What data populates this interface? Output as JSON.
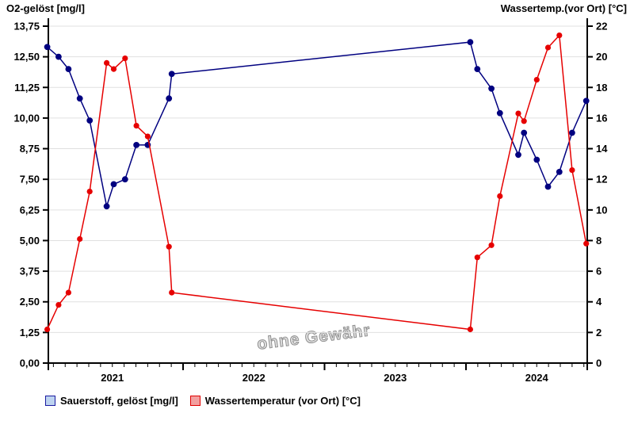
{
  "titles": {
    "left": "O2-gelöst [mg/l]",
    "right": "Wassertemp.(vor Ort) [°C]"
  },
  "watermark": "ohne Gewähr",
  "legend": [
    {
      "label": "Sauerstoff, gelöst [mg/l]",
      "fill": "#bdd3f0",
      "border": "#1a1aa0"
    },
    {
      "label": "Wassertemperatur (vor Ort) [°C]",
      "fill": "#f2a0a0",
      "border": "#e00000"
    }
  ],
  "chart_data": {
    "type": "line",
    "title": "",
    "grid": "horizontal",
    "legend_position": "bottom-left",
    "left_axis": {
      "label": "O2-gelöst [mg/l]",
      "min": 0,
      "max": 13.75,
      "tick_step": 1.25,
      "tick_labels": [
        "0,00",
        "1,25",
        "2,50",
        "3,75",
        "5,00",
        "6,25",
        "7,50",
        "8,75",
        "10,00",
        "11,25",
        "12,50",
        "13,75"
      ]
    },
    "right_axis": {
      "label": "Wassertemp.(vor Ort) [°C]",
      "min": 0,
      "max": 22,
      "tick_step": 2,
      "tick_labels": [
        "0",
        "2",
        "4",
        "6",
        "8",
        "10",
        "12",
        "14",
        "16",
        "18",
        "20",
        "22"
      ]
    },
    "x_axis": {
      "year_labels": [
        "2021",
        "2022",
        "2023",
        "2024"
      ],
      "range_decimal_years": [
        2021.05,
        2024.86
      ],
      "minor_ticks": "monthly",
      "major_ticks_at": [
        2022,
        2023,
        2024
      ]
    },
    "x_decimal_years": [
      2021.04,
      2021.12,
      2021.19,
      2021.27,
      2021.34,
      2021.46,
      2021.51,
      2021.59,
      2021.67,
      2021.75,
      2021.9,
      2021.92,
      2024.03,
      2024.08,
      2024.18,
      2024.24,
      2024.37,
      2024.41,
      2024.5,
      2024.58,
      2024.66,
      2024.75,
      2024.85
    ],
    "series": [
      {
        "name": "Sauerstoff, gelöst [mg/l]",
        "axis": "left",
        "color": "#000080",
        "values": [
          12.9,
          12.5,
          12.0,
          10.8,
          9.9,
          6.4,
          7.3,
          7.5,
          8.9,
          8.9,
          10.8,
          11.8,
          13.1,
          12.0,
          11.2,
          10.2,
          8.5,
          9.4,
          8.3,
          7.2,
          7.8,
          9.4,
          10.7
        ]
      },
      {
        "name": "Wassertemperatur (vor Ort) [°C]",
        "axis": "right",
        "color": "#e60000",
        "values": [
          2.2,
          3.8,
          4.6,
          8.1,
          11.2,
          19.6,
          19.2,
          19.9,
          15.5,
          14.8,
          7.6,
          4.6,
          2.2,
          6.9,
          7.7,
          10.9,
          16.3,
          15.8,
          18.5,
          20.6,
          21.4,
          12.6,
          7.8
        ]
      }
    ]
  }
}
